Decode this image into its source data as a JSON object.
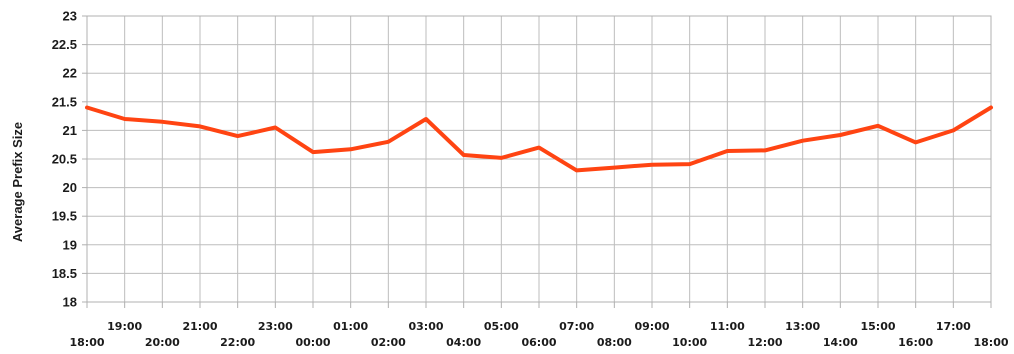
{
  "chart_data": {
    "type": "line",
    "title": "",
    "xlabel": "",
    "ylabel": "Average Prefix Size",
    "ylim": [
      18,
      23
    ],
    "yticks": [
      "18",
      "18.5",
      "19",
      "19.5",
      "20",
      "20.5",
      "21",
      "21.5",
      "22",
      "22.5",
      "23"
    ],
    "grid": true,
    "legend": "none",
    "categories": [
      "18:00",
      "19:00",
      "20:00",
      "21:00",
      "22:00",
      "23:00",
      "00:00",
      "01:00",
      "02:00",
      "03:00",
      "04:00",
      "05:00",
      "06:00",
      "07:00",
      "08:00",
      "09:00",
      "10:00",
      "11:00",
      "12:00",
      "13:00",
      "14:00",
      "15:00",
      "16:00",
      "17:00",
      "18:00"
    ],
    "series": [
      {
        "color": "#ff4412",
        "values": [
          21.4,
          21.2,
          21.15,
          21.07,
          20.9,
          21.05,
          20.62,
          20.67,
          20.8,
          21.2,
          20.57,
          20.52,
          20.7,
          20.3,
          20.35,
          20.4,
          20.41,
          20.64,
          20.65,
          20.82,
          20.92,
          21.08,
          20.79,
          21.0,
          21.4
        ]
      }
    ],
    "colors": {
      "grid": "#bdbdbd",
      "frame": "#b0b0b0",
      "text": "#1b1b1b"
    }
  }
}
